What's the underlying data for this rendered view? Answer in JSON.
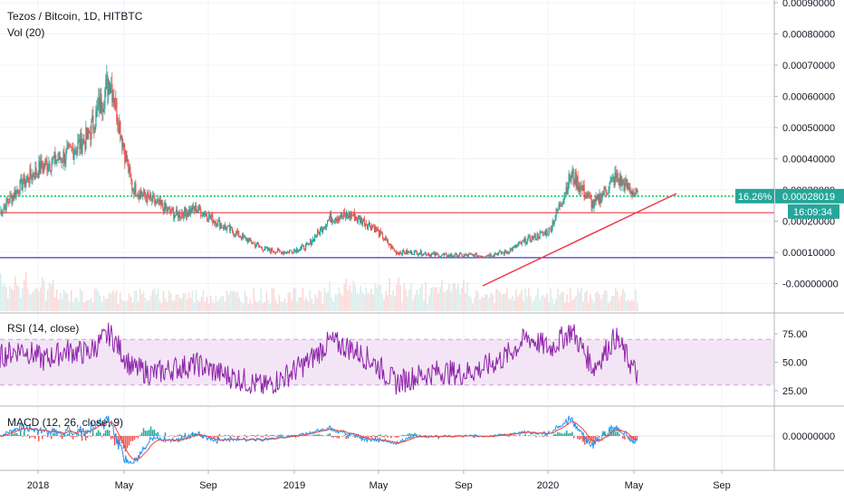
{
  "header": {
    "symbol_line": "Tezos / Bitcoin, 1D, HITBTC",
    "volume_line": "Vol (20)"
  },
  "price_axis": {
    "labels": [
      "0.00090000",
      "0.00080000",
      "0.00070000",
      "0.00060000",
      "0.00050000",
      "0.00040000",
      "0.00030000",
      "0.00020000",
      "0.00010000",
      "-0.00000000"
    ],
    "values": [
      0.0009,
      0.0008,
      0.0007,
      0.0006,
      0.0005,
      0.0004,
      0.0003,
      0.0002,
      0.0001,
      0.0
    ]
  },
  "badges": {
    "change_pct": "16.26%",
    "last_price": "0.00028019",
    "countdown": "16:09:34",
    "color": "#26a69a"
  },
  "rsi": {
    "legend": "RSI (14, close)",
    "axis_labels": [
      "75.00",
      "50.00",
      "25.00"
    ],
    "axis_values": [
      75,
      50,
      25
    ],
    "band": [
      30,
      70
    ],
    "line_color": "#8e24aa",
    "band_color": "#f3e5f5"
  },
  "macd": {
    "legend": "MACD (12, 26, close, 9)",
    "axis_label": "0.00000000",
    "macd_color": "#2196f3",
    "signal_color": "#f44336"
  },
  "time_axis": {
    "labels": [
      "2018",
      "May",
      "Sep",
      "2019",
      "May",
      "Sep",
      "2020",
      "May",
      "Sep"
    ]
  },
  "colors": {
    "up": "#26a69a",
    "down": "#ef5350",
    "green_line": "#00c853",
    "red_line": "#f23645",
    "blue_line": "#3f3fbf"
  },
  "chart_data": {
    "type": "candlestick",
    "title": "Tezos / Bitcoin, 1D, HITBTC",
    "ylim": [
      -1e-05,
      0.0009
    ],
    "x": [
      "2017-12",
      "2018-01",
      "2018-02",
      "2018-03",
      "2018-04",
      "2018-05",
      "2018-06",
      "2018-07",
      "2018-08",
      "2018-09",
      "2018-10",
      "2018-11",
      "2018-12",
      "2019-01",
      "2019-02",
      "2019-03",
      "2019-04",
      "2019-05",
      "2019-06",
      "2019-07",
      "2019-08",
      "2019-09",
      "2019-10",
      "2019-11",
      "2019-12",
      "2020-01",
      "2020-02",
      "2020-03",
      "2020-04",
      "2020-05"
    ],
    "close": [
      0.00023,
      0.00032,
      0.00038,
      0.00041,
      0.00047,
      0.00066,
      0.00031,
      0.00026,
      0.00022,
      0.00024,
      0.00019,
      0.00015,
      0.00011,
      0.0001,
      0.00012,
      0.00021,
      0.00022,
      0.00018,
      0.0001,
      0.0001,
      9e-05,
      9e-05,
      9e-05,
      0.0001,
      0.00014,
      0.00017,
      0.00035,
      0.00025,
      0.00034,
      0.00028
    ],
    "horizontal_lines": [
      {
        "level": 0.00028019,
        "style": "dotted"
      },
      {
        "level": 0.000227
      },
      {
        "level": 8.3e-05
      }
    ],
    "trendline": {
      "from": [
        "2019-09",
        8.5e-05
      ],
      "to": [
        "2020-06",
        0.00031
      ]
    },
    "rsi_close": [
      55,
      62,
      52,
      60,
      58,
      75,
      45,
      40,
      45,
      48,
      40,
      35,
      28,
      38,
      50,
      68,
      62,
      50,
      32,
      38,
      42,
      40,
      45,
      55,
      72,
      62,
      78,
      45,
      72,
      38
    ]
  }
}
